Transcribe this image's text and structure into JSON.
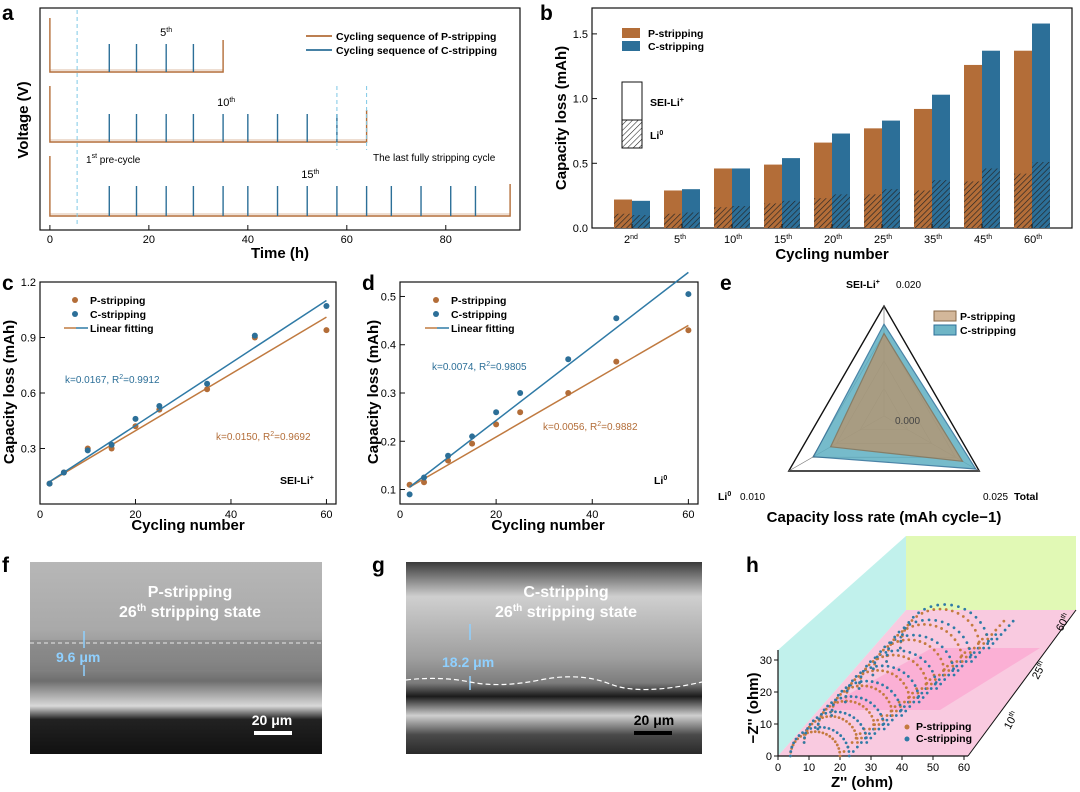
{
  "colors": {
    "p": "#b36d38",
    "c": "#2c6f98",
    "pLine": "#c07a40",
    "cLine": "#2f7aa6",
    "radarP": "#b9926a",
    "radarC": "#5fb0c3"
  },
  "panels": {
    "a": "a",
    "b": "b",
    "c": "c",
    "d": "d",
    "e": "e",
    "f": "f",
    "g": "g",
    "h": "h"
  },
  "chart_data": [
    {
      "id": "a",
      "type": "line",
      "title": "",
      "xlabel": "Time (h)",
      "ylabel": "Voltage (V)",
      "xlim": [
        -2,
        95
      ],
      "xticks": [
        0,
        20,
        40,
        60,
        80
      ],
      "legend": [
        "Cycling sequence of P-stripping",
        "Cycling sequence of C-stripping"
      ],
      "rows": [
        {
          "label": "5",
          "sup": "th",
          "p_end": 35,
          "spikes": [
            12,
            17.5,
            23.5,
            29
          ]
        },
        {
          "label": "10",
          "sup": "th",
          "p_end": 64,
          "spikes": [
            12,
            17.5,
            23.5,
            29,
            35,
            40,
            46,
            52,
            58
          ]
        },
        {
          "label": "15",
          "sup": "th",
          "p_end": 93,
          "spikes": [
            12,
            17.5,
            23.5,
            29,
            35,
            40,
            46,
            52,
            58,
            64,
            69,
            75,
            81,
            86
          ]
        }
      ],
      "annotations": {
        "pre": "1",
        "pre_sup": "st",
        "pre_rest": " pre-cycle",
        "last": "The last fully stripping cycle"
      }
    },
    {
      "id": "b",
      "type": "bar",
      "xlabel": "Cycling number",
      "ylabel": "Capacity loss (mAh)",
      "ylim": [
        0,
        1.7
      ],
      "yticks": [
        0.0,
        0.5,
        1.0,
        1.5
      ],
      "categories": [
        {
          "n": "2",
          "s": "nd"
        },
        {
          "n": "5",
          "s": "th"
        },
        {
          "n": "10",
          "s": "th"
        },
        {
          "n": "15",
          "s": "th"
        },
        {
          "n": "20",
          "s": "th"
        },
        {
          "n": "25",
          "s": "th"
        },
        {
          "n": "35",
          "s": "th"
        },
        {
          "n": "45",
          "s": "th"
        },
        {
          "n": "60",
          "s": "th"
        }
      ],
      "series": [
        {
          "name": "P-stripping",
          "total": [
            0.22,
            0.29,
            0.46,
            0.49,
            0.66,
            0.77,
            0.92,
            1.26,
            1.37
          ],
          "li0": [
            0.11,
            0.11,
            0.16,
            0.19,
            0.23,
            0.26,
            0.29,
            0.36,
            0.42
          ]
        },
        {
          "name": "C-stripping",
          "total": [
            0.21,
            0.3,
            0.46,
            0.54,
            0.73,
            0.83,
            1.03,
            1.37,
            1.58
          ],
          "li0": [
            0.1,
            0.12,
            0.17,
            0.21,
            0.26,
            0.3,
            0.37,
            0.46,
            0.51
          ]
        }
      ],
      "inner_legend": {
        "sei": "SEI-Li",
        "sei_sup": "+",
        "li": "Li",
        "li_sup": "0"
      }
    },
    {
      "id": "c",
      "type": "scatter",
      "xlabel": "Cycling number",
      "ylabel": "Capacity loss (mAh)",
      "xlim": [
        0,
        62
      ],
      "ylim": [
        0,
        1.2
      ],
      "xticks": [
        0,
        20,
        40,
        60
      ],
      "yticks": [
        0.3,
        0.6,
        0.9,
        1.2
      ],
      "x": [
        2,
        5,
        10,
        15,
        20,
        25,
        35,
        45,
        60
      ],
      "series": [
        {
          "name": "P-stripping",
          "values": [
            0.11,
            0.17,
            0.3,
            0.3,
            0.42,
            0.51,
            0.62,
            0.9,
            0.94
          ],
          "fit": [
            0.12,
            1.01
          ]
        },
        {
          "name": "C-stripping",
          "values": [
            0.11,
            0.17,
            0.29,
            0.32,
            0.46,
            0.53,
            0.65,
            0.91,
            1.07
          ],
          "fit": [
            0.12,
            1.1
          ]
        }
      ],
      "legend_fit": "Linear fitting",
      "ann_c": "k=0.0167, R",
      "ann_c_sup": "2",
      "ann_c_rest": "=0.9912",
      "ann_p": "k=0.0150, R",
      "ann_p_sup": "2",
      "ann_p_rest": "=0.9692",
      "tag": "SEI-Li",
      "tag_sup": "+"
    },
    {
      "id": "d",
      "type": "scatter",
      "xlabel": "Cycling number",
      "ylabel": "Capacity loss (mAh)",
      "xlim": [
        0,
        62
      ],
      "ylim": [
        0.07,
        0.53
      ],
      "xticks": [
        0,
        20,
        40,
        60
      ],
      "yticks": [
        0.1,
        0.2,
        0.3,
        0.4,
        0.5
      ],
      "x": [
        2,
        5,
        10,
        15,
        20,
        25,
        35,
        45,
        60
      ],
      "series": [
        {
          "name": "P-stripping",
          "values": [
            0.11,
            0.115,
            0.16,
            0.195,
            0.235,
            0.26,
            0.3,
            0.365,
            0.43
          ],
          "fit": [
            0.105,
            0.44
          ]
        },
        {
          "name": "C-stripping",
          "values": [
            0.09,
            0.125,
            0.17,
            0.21,
            0.26,
            0.3,
            0.37,
            0.455,
            0.505
          ],
          "fit": [
            0.105,
            0.55
          ]
        }
      ],
      "legend_fit": "Linear fitting",
      "ann_c": "k=0.0074, R",
      "ann_c_sup": "2",
      "ann_c_rest": "=0.9805",
      "ann_p": "k=0.0056, R",
      "ann_p_sup": "2",
      "ann_p_rest": "=0.9882",
      "tag": "Li",
      "tag_sup": "0"
    },
    {
      "id": "e",
      "type": "radar",
      "title": "Capacity loss rate (mAh cycle−1)",
      "axes": [
        {
          "name": "SEI-Li",
          "sup": "+",
          "max": 0.02,
          "maxlabel": "0.020"
        },
        {
          "name": "Total",
          "sup": "",
          "max": 0.025,
          "maxlabel": "0.025"
        },
        {
          "name": "Li",
          "sup": "0",
          "max": 0.01,
          "maxlabel": "0.010"
        }
      ],
      "center": "0.000",
      "series": [
        {
          "name": "P-stripping",
          "values": [
            0.015,
            0.0206,
            0.0056
          ]
        },
        {
          "name": "C-stripping",
          "values": [
            0.0167,
            0.0241,
            0.0074
          ]
        }
      ]
    },
    {
      "id": "h",
      "type": "scatter",
      "xlabel": "Z'' (ohm)",
      "ylabel": "−Z'' (ohm)",
      "xticks": [
        0,
        10,
        20,
        30,
        40,
        50,
        60
      ],
      "yticks": [
        0,
        10,
        20,
        30
      ],
      "depth_ticks": [
        {
          "n": "10",
          "s": "th"
        },
        {
          "n": "25",
          "s": "th"
        },
        {
          "n": "60",
          "s": "th"
        }
      ],
      "legend": [
        "P-stripping",
        "C-stripping"
      ]
    }
  ],
  "micro": {
    "f": {
      "line1": "P-stripping",
      "num": "26",
      "sup": "th",
      "rest": " stripping state",
      "thickness": "9.6 μm",
      "scale": "20 μm"
    },
    "g": {
      "line1": "C-stripping",
      "num": "26",
      "sup": "th",
      "rest": " stripping state",
      "thickness": "18.2 μm",
      "scale": "20 μm"
    }
  }
}
